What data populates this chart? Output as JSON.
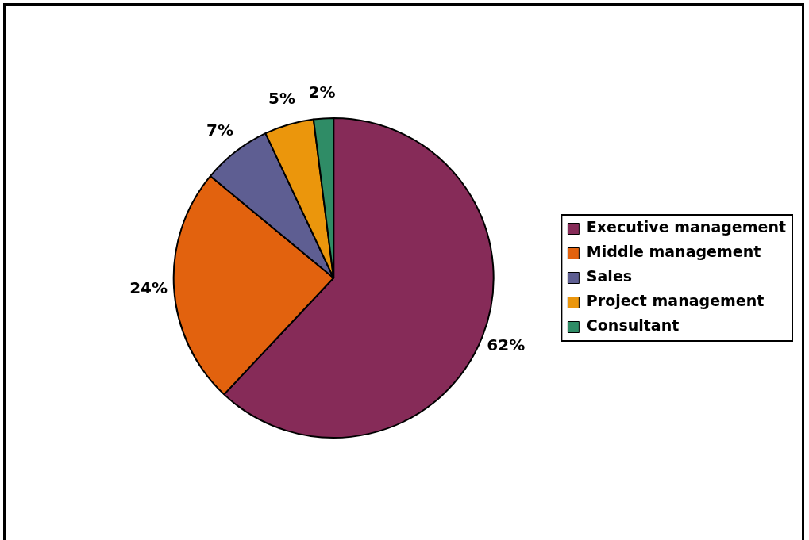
{
  "chart_data": {
    "type": "pie",
    "categories": [
      "Executive management",
      "Middle management",
      "Sales",
      "Project management",
      "Consultant"
    ],
    "values": [
      62,
      24,
      7,
      5,
      2
    ],
    "colors": [
      "#862b58",
      "#e2620e",
      "#5e5e92",
      "#eb960c",
      "#2f8c66"
    ],
    "value_labels": [
      "62%",
      "24%",
      "7%",
      "5%",
      "2%"
    ],
    "legend": "right"
  }
}
